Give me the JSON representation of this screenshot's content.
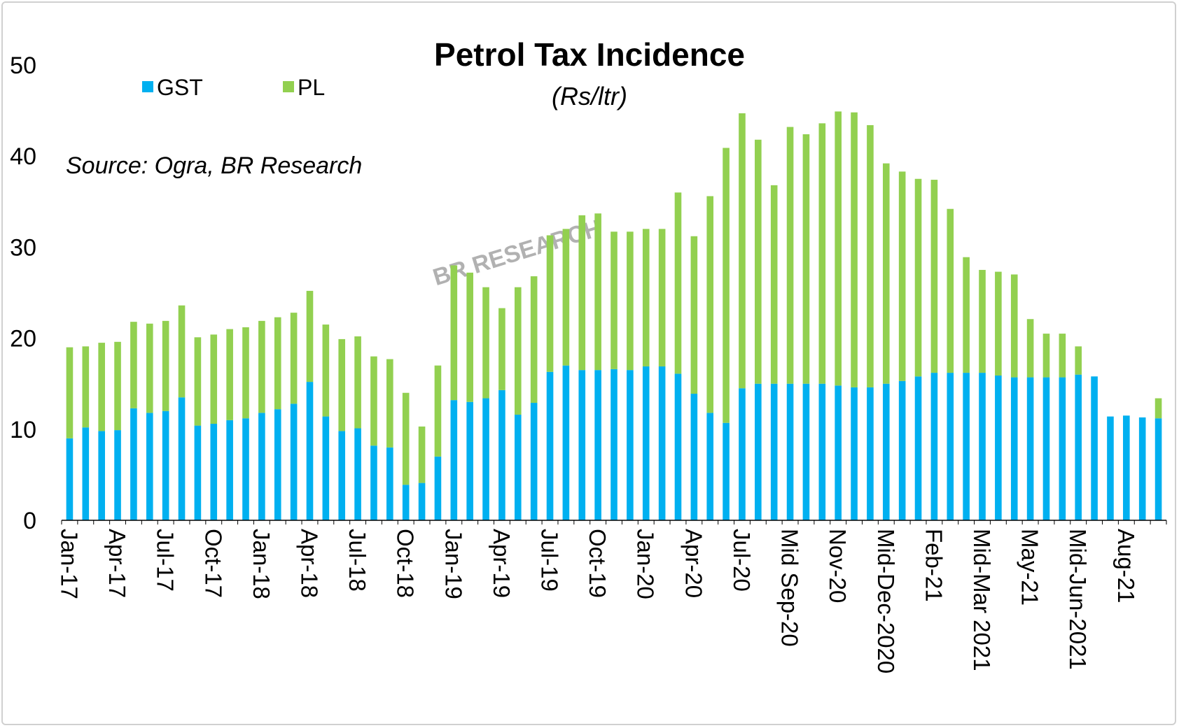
{
  "chart_data": {
    "type": "bar",
    "stacked": true,
    "title": "Petrol Tax Incidence",
    "subtitle": "(Rs/ltr)",
    "source_note": "Source: Ogra, BR Research",
    "watermark": "BR RESEARCH",
    "ylim": [
      0,
      50
    ],
    "yticks": [
      0,
      10,
      20,
      30,
      40,
      50
    ],
    "legend_position": "top-left",
    "grid": false,
    "series": [
      {
        "name": "GST",
        "color": "#00b0f0",
        "values": [
          9.0,
          10.2,
          9.8,
          9.9,
          12.3,
          11.8,
          12.0,
          13.5,
          10.4,
          10.6,
          11.0,
          11.2,
          11.8,
          12.2,
          12.8,
          15.2,
          11.4,
          9.8,
          10.1,
          8.2,
          8.0,
          3.9,
          4.1,
          7.0,
          13.2,
          13.0,
          13.4,
          14.3,
          11.6,
          12.9,
          16.3,
          17.0,
          16.5,
          16.5,
          16.6,
          16.5,
          16.9,
          16.9,
          16.1,
          13.9,
          11.8,
          10.7,
          14.5,
          15.0,
          15.0,
          15.0,
          15.0,
          15.0,
          14.8,
          14.6,
          14.6,
          15.0,
          15.3,
          15.8,
          16.2,
          16.2,
          16.2,
          16.2,
          15.9,
          15.7,
          15.7,
          15.7,
          15.7,
          16.0,
          15.8,
          11.4,
          11.5,
          11.3,
          11.2
        ]
      },
      {
        "name": "PL",
        "color": "#92d050",
        "values": [
          10.0,
          8.9,
          9.7,
          9.7,
          9.5,
          9.8,
          9.9,
          10.1,
          9.7,
          9.8,
          10.0,
          10.0,
          10.1,
          10.1,
          10.0,
          10.0,
          10.1,
          10.1,
          10.1,
          9.8,
          9.7,
          10.1,
          6.2,
          10.0,
          14.8,
          14.2,
          12.2,
          9.0,
          14.0,
          13.9,
          15.0,
          15.0,
          17.0,
          17.2,
          15.1,
          15.2,
          15.1,
          15.1,
          19.9,
          17.3,
          23.8,
          30.2,
          30.2,
          26.8,
          21.8,
          28.2,
          27.4,
          28.6,
          30.1,
          30.2,
          28.8,
          24.2,
          23.0,
          21.7,
          21.2,
          18.0,
          12.7,
          11.3,
          11.4,
          11.3,
          6.4,
          4.8,
          4.8,
          3.1,
          0,
          0,
          0,
          0,
          2.2
        ]
      }
    ],
    "x_tick_labels": [
      "Jan-17",
      "Apr-17",
      "Jul-17",
      "Oct-17",
      "Jan-18",
      "Apr-18",
      "Jul-18",
      "Oct-18",
      "Jan-19",
      "Apr-19",
      "Jul-19",
      "Oct-19",
      "Jan-20",
      "Apr-20",
      "Jul-20",
      "Mid Sep-20",
      "Nov-20",
      "Mid-Dec-2020",
      "Feb-21",
      "Mid-Mar 2021",
      "May-21",
      "Mid-Jun-2021",
      "Aug-21"
    ],
    "x_tick_bar_index": [
      0,
      3,
      6,
      9,
      12,
      15,
      18,
      21,
      24,
      27,
      30,
      33,
      36,
      39,
      42,
      45,
      48,
      51,
      54,
      57,
      60,
      63,
      66
    ]
  }
}
